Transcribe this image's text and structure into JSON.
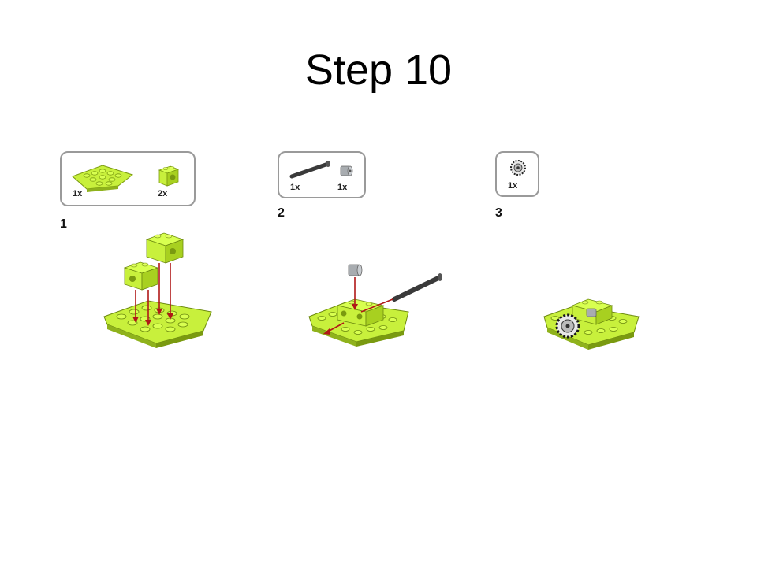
{
  "title": "Step 10",
  "colors": {
    "lime": "#c8f03c",
    "lime_dark": "#8fb21c",
    "divider": "#4a86c8",
    "arrow": "#b01818",
    "axle": "#3a3a3a",
    "grey_part": "#a8acb0"
  },
  "panels": [
    {
      "step_number": "1",
      "parts": [
        {
          "icon": "wedge-plate-icon",
          "quantity": "1x"
        },
        {
          "icon": "technic-brick-icon",
          "quantity": "2x"
        }
      ]
    },
    {
      "step_number": "2",
      "parts": [
        {
          "icon": "axle-icon",
          "quantity": "1x"
        },
        {
          "icon": "bush-icon",
          "quantity": "1x"
        }
      ]
    },
    {
      "step_number": "3",
      "parts": [
        {
          "icon": "gear-icon",
          "quantity": "1x"
        }
      ]
    }
  ]
}
